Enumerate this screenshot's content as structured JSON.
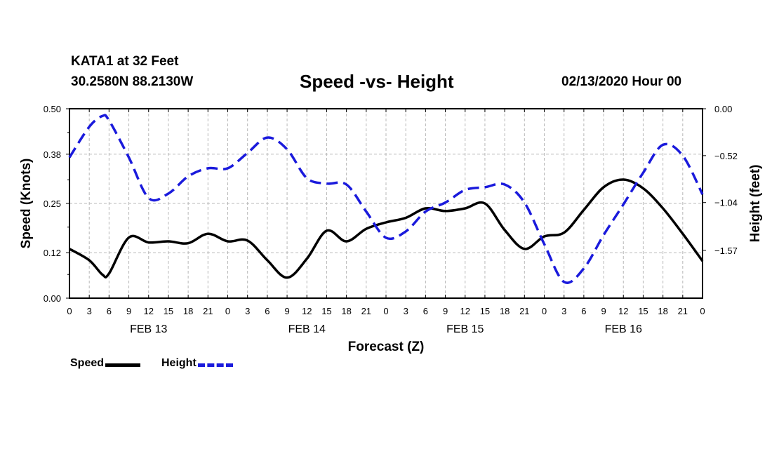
{
  "header": {
    "station": "KATA1 at 32 Feet",
    "coords": "30.2580N 88.2130W",
    "title": "Speed -vs- Height",
    "date": "02/13/2020 Hour 00"
  },
  "chart_data": {
    "type": "line",
    "title": "Speed -vs- Height",
    "xlabel": "Forecast (Z)",
    "ylabel": "Speed (Knots)",
    "y2label": "Height (feet)",
    "ylim": [
      0.0,
      0.5
    ],
    "y2lim": [
      -2.1,
      0.0
    ],
    "yticks": [
      "0.00",
      "0.12",
      "0.25",
      "0.38",
      "0.50"
    ],
    "y2ticks": [
      "0.00",
      "-0.52",
      "-1.04",
      "-1.57"
    ],
    "y2tick_values": [
      0.0,
      -0.52,
      -1.04,
      -1.57
    ],
    "xlim": [
      0,
      96
    ],
    "xtick_labels": [
      "0",
      "3",
      "6",
      "9",
      "12",
      "15",
      "18",
      "21",
      "0",
      "3",
      "6",
      "9",
      "12",
      "15",
      "18",
      "21",
      "0",
      "3",
      "6",
      "9",
      "12",
      "15",
      "18",
      "21",
      "0",
      "3",
      "6",
      "9",
      "12",
      "15",
      "18",
      "21",
      "0"
    ],
    "day_labels": [
      "FEB 13",
      "FEB 14",
      "FEB 15",
      "FEB 16"
    ],
    "grid": true,
    "legend_position": "bottom-left",
    "series": [
      {
        "name": "Speed",
        "axis": "left",
        "color": "#000000",
        "dash": "solid",
        "x": [
          0,
          3,
          5,
          6,
          9,
          12,
          15,
          18,
          21,
          24,
          27,
          30,
          33,
          36,
          39,
          42,
          45,
          48,
          51,
          54,
          57,
          60,
          63,
          66,
          69,
          72,
          75,
          78,
          81,
          84,
          87,
          90,
          93,
          96
        ],
        "values": [
          0.13,
          0.1,
          0.062,
          0.065,
          0.16,
          0.147,
          0.15,
          0.145,
          0.17,
          0.15,
          0.152,
          0.1,
          0.054,
          0.104,
          0.178,
          0.15,
          0.183,
          0.2,
          0.212,
          0.237,
          0.23,
          0.237,
          0.25,
          0.18,
          0.13,
          0.163,
          0.173,
          0.233,
          0.293,
          0.313,
          0.29,
          0.237,
          0.17,
          0.098
        ]
      },
      {
        "name": "Height",
        "axis": "right",
        "color": "#1a1adc",
        "dash": "dashed",
        "x": [
          0,
          3,
          5,
          6,
          9,
          12,
          15,
          18,
          21,
          24,
          27,
          30,
          33,
          36,
          39,
          42,
          45,
          48,
          51,
          54,
          57,
          60,
          63,
          66,
          69,
          72,
          75,
          78,
          81,
          84,
          87,
          90,
          93,
          96
        ],
        "values": [
          -0.54,
          -0.2,
          -0.08,
          -0.13,
          -0.54,
          -0.99,
          -0.94,
          -0.75,
          -0.66,
          -0.66,
          -0.49,
          -0.32,
          -0.45,
          -0.77,
          -0.83,
          -0.84,
          -1.14,
          -1.43,
          -1.36,
          -1.14,
          -1.04,
          -0.9,
          -0.87,
          -0.84,
          -1.04,
          -1.5,
          -1.92,
          -1.77,
          -1.4,
          -1.06,
          -0.71,
          -0.4,
          -0.52,
          -0.95
        ]
      }
    ]
  }
}
